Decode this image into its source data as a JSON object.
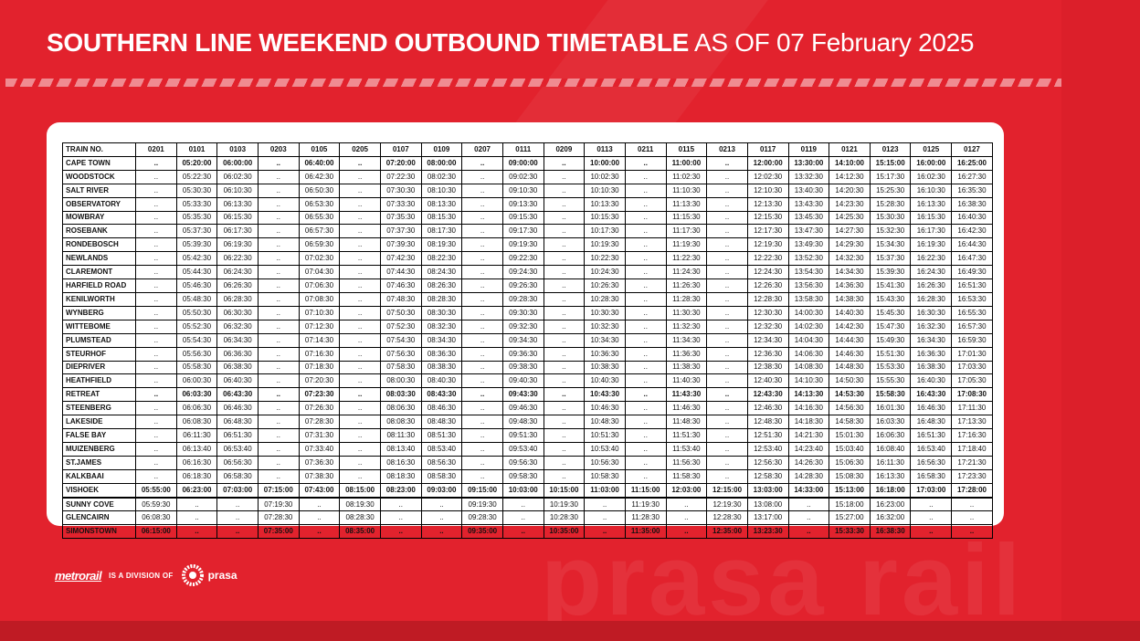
{
  "header": {
    "title_bold": "SOUTHERN LINE WEEKEND OUTBOUND TIMETABLE",
    "title_light": "AS OF 07 February 2025"
  },
  "watermark_text": "prasa rail",
  "timetable": {
    "corner_label": "TRAIN NO.",
    "trains": [
      "0201",
      "0101",
      "0103",
      "0203",
      "0105",
      "0205",
      "0107",
      "0109",
      "0207",
      "0111",
      "0209",
      "0113",
      "0211",
      "0115",
      "0213",
      "0117",
      "0119",
      "0121",
      "0123",
      "0125",
      "0127"
    ],
    "rows": [
      {
        "station": "CAPE TOWN",
        "bold": true,
        "sep": false,
        "times": [
          "..",
          "05:20:00",
          "06:00:00",
          "..",
          "06:40:00",
          "..",
          "07:20:00",
          "08:00:00",
          "..",
          "09:00:00",
          "..",
          "10:00:00",
          "..",
          "11:00:00",
          "..",
          "12:00:00",
          "13:30:00",
          "14:10:00",
          "15:15:00",
          "16:00:00",
          "16:25:00"
        ]
      },
      {
        "station": "WOODSTOCK",
        "bold": false,
        "sep": false,
        "times": [
          "..",
          "05:22:30",
          "06:02:30",
          "..",
          "06:42:30",
          "..",
          "07:22:30",
          "08:02:30",
          "..",
          "09:02:30",
          "..",
          "10:02:30",
          "..",
          "11:02:30",
          "..",
          "12:02:30",
          "13:32:30",
          "14:12:30",
          "15:17:30",
          "16:02:30",
          "16:27:30"
        ]
      },
      {
        "station": "SALT RIVER",
        "bold": false,
        "sep": false,
        "times": [
          "..",
          "05:30:30",
          "06:10:30",
          "..",
          "06:50:30",
          "..",
          "07:30:30",
          "08:10:30",
          "..",
          "09:10:30",
          "..",
          "10:10:30",
          "..",
          "11:10:30",
          "..",
          "12:10:30",
          "13:40:30",
          "14:20:30",
          "15:25:30",
          "16:10:30",
          "16:35:30"
        ]
      },
      {
        "station": "OBSERVATORY",
        "bold": false,
        "sep": false,
        "times": [
          "..",
          "05:33:30",
          "06:13:30",
          "..",
          "06:53:30",
          "..",
          "07:33:30",
          "08:13:30",
          "..",
          "09:13:30",
          "..",
          "10:13:30",
          "..",
          "11:13:30",
          "..",
          "12:13:30",
          "13:43:30",
          "14:23:30",
          "15:28:30",
          "16:13:30",
          "16:38:30"
        ]
      },
      {
        "station": "MOWBRAY",
        "bold": false,
        "sep": false,
        "times": [
          "..",
          "05:35:30",
          "06:15:30",
          "..",
          "06:55:30",
          "..",
          "07:35:30",
          "08:15:30",
          "..",
          "09:15:30",
          "..",
          "10:15:30",
          "..",
          "11:15:30",
          "..",
          "12:15:30",
          "13:45:30",
          "14:25:30",
          "15:30:30",
          "16:15:30",
          "16:40:30"
        ]
      },
      {
        "station": "ROSEBANK",
        "bold": false,
        "sep": false,
        "times": [
          "..",
          "05:37:30",
          "06:17:30",
          "..",
          "06:57:30",
          "..",
          "07:37:30",
          "08:17:30",
          "..",
          "09:17:30",
          "..",
          "10:17:30",
          "..",
          "11:17:30",
          "..",
          "12:17:30",
          "13:47:30",
          "14:27:30",
          "15:32:30",
          "16:17:30",
          "16:42:30"
        ]
      },
      {
        "station": "RONDEBOSCH",
        "bold": false,
        "sep": false,
        "times": [
          "..",
          "05:39:30",
          "06:19:30",
          "..",
          "06:59:30",
          "..",
          "07:39:30",
          "08:19:30",
          "..",
          "09:19:30",
          "..",
          "10:19:30",
          "..",
          "11:19:30",
          "..",
          "12:19:30",
          "13:49:30",
          "14:29:30",
          "15:34:30",
          "16:19:30",
          "16:44:30"
        ]
      },
      {
        "station": "NEWLANDS",
        "bold": false,
        "sep": false,
        "times": [
          "..",
          "05:42:30",
          "06:22:30",
          "..",
          "07:02:30",
          "..",
          "07:42:30",
          "08:22:30",
          "..",
          "09:22:30",
          "..",
          "10:22:30",
          "..",
          "11:22:30",
          "..",
          "12:22:30",
          "13:52:30",
          "14:32:30",
          "15:37:30",
          "16:22:30",
          "16:47:30"
        ]
      },
      {
        "station": "CLAREMONT",
        "bold": false,
        "sep": false,
        "times": [
          "..",
          "05:44:30",
          "06:24:30",
          "..",
          "07:04:30",
          "..",
          "07:44:30",
          "08:24:30",
          "..",
          "09:24:30",
          "..",
          "10:24:30",
          "..",
          "11:24:30",
          "..",
          "12:24:30",
          "13:54:30",
          "14:34:30",
          "15:39:30",
          "16:24:30",
          "16:49:30"
        ]
      },
      {
        "station": "HARFIELD ROAD",
        "bold": false,
        "sep": false,
        "times": [
          "..",
          "05:46:30",
          "06:26:30",
          "..",
          "07:06:30",
          "..",
          "07:46:30",
          "08:26:30",
          "..",
          "09:26:30",
          "..",
          "10:26:30",
          "..",
          "11:26:30",
          "..",
          "12:26:30",
          "13:56:30",
          "14:36:30",
          "15:41:30",
          "16:26:30",
          "16:51:30"
        ]
      },
      {
        "station": "KENILWORTH",
        "bold": false,
        "sep": false,
        "times": [
          "..",
          "05:48:30",
          "06:28:30",
          "..",
          "07:08:30",
          "..",
          "07:48:30",
          "08:28:30",
          "..",
          "09:28:30",
          "..",
          "10:28:30",
          "..",
          "11:28:30",
          "..",
          "12:28:30",
          "13:58:30",
          "14:38:30",
          "15:43:30",
          "16:28:30",
          "16:53:30"
        ]
      },
      {
        "station": "WYNBERG",
        "bold": false,
        "sep": false,
        "times": [
          "..",
          "05:50:30",
          "06:30:30",
          "..",
          "07:10:30",
          "..",
          "07:50:30",
          "08:30:30",
          "..",
          "09:30:30",
          "..",
          "10:30:30",
          "..",
          "11:30:30",
          "..",
          "12:30:30",
          "14:00:30",
          "14:40:30",
          "15:45:30",
          "16:30:30",
          "16:55:30"
        ]
      },
      {
        "station": "WITTEBOME",
        "bold": false,
        "sep": false,
        "times": [
          "..",
          "05:52:30",
          "06:32:30",
          "..",
          "07:12:30",
          "..",
          "07:52:30",
          "08:32:30",
          "..",
          "09:32:30",
          "..",
          "10:32:30",
          "..",
          "11:32:30",
          "..",
          "12:32:30",
          "14:02:30",
          "14:42:30",
          "15:47:30",
          "16:32:30",
          "16:57:30"
        ]
      },
      {
        "station": "PLUMSTEAD",
        "bold": false,
        "sep": false,
        "times": [
          "..",
          "05:54:30",
          "06:34:30",
          "..",
          "07:14:30",
          "..",
          "07:54:30",
          "08:34:30",
          "..",
          "09:34:30",
          "..",
          "10:34:30",
          "..",
          "11:34:30",
          "..",
          "12:34:30",
          "14:04:30",
          "14:44:30",
          "15:49:30",
          "16:34:30",
          "16:59:30"
        ]
      },
      {
        "station": "STEURHOF",
        "bold": false,
        "sep": false,
        "times": [
          "..",
          "05:56:30",
          "06:36:30",
          "..",
          "07:16:30",
          "..",
          "07:56:30",
          "08:36:30",
          "..",
          "09:36:30",
          "..",
          "10:36:30",
          "..",
          "11:36:30",
          "..",
          "12:36:30",
          "14:06:30",
          "14:46:30",
          "15:51:30",
          "16:36:30",
          "17:01:30"
        ]
      },
      {
        "station": "DIEPRIVER",
        "bold": false,
        "sep": false,
        "times": [
          "..",
          "05:58:30",
          "06:38:30",
          "..",
          "07:18:30",
          "..",
          "07:58:30",
          "08:38:30",
          "..",
          "09:38:30",
          "..",
          "10:38:30",
          "..",
          "11:38:30",
          "..",
          "12:38:30",
          "14:08:30",
          "14:48:30",
          "15:53:30",
          "16:38:30",
          "17:03:30"
        ]
      },
      {
        "station": "HEATHFIELD",
        "bold": false,
        "sep": false,
        "times": [
          "..",
          "06:00:30",
          "06:40:30",
          "..",
          "07:20:30",
          "..",
          "08:00:30",
          "08:40:30",
          "..",
          "09:40:30",
          "..",
          "10:40:30",
          "..",
          "11:40:30",
          "..",
          "12:40:30",
          "14:10:30",
          "14:50:30",
          "15:55:30",
          "16:40:30",
          "17:05:30"
        ]
      },
      {
        "station": "RETREAT",
        "bold": true,
        "sep": false,
        "times": [
          "..",
          "06:03:30",
          "06:43:30",
          "..",
          "07:23:30",
          "..",
          "08:03:30",
          "08:43:30",
          "..",
          "09:43:30",
          "..",
          "10:43:30",
          "..",
          "11:43:30",
          "..",
          "12:43:30",
          "14:13:30",
          "14:53:30",
          "15:58:30",
          "16:43:30",
          "17:08:30"
        ]
      },
      {
        "station": "STEENBERG",
        "bold": false,
        "sep": false,
        "times": [
          "..",
          "06:06:30",
          "06:46:30",
          "..",
          "07:26:30",
          "..",
          "08:06:30",
          "08:46:30",
          "..",
          "09:46:30",
          "..",
          "10:46:30",
          "..",
          "11:46:30",
          "..",
          "12:46:30",
          "14:16:30",
          "14:56:30",
          "16:01:30",
          "16:46:30",
          "17:11:30"
        ]
      },
      {
        "station": "LAKESIDE",
        "bold": false,
        "sep": false,
        "times": [
          "..",
          "06:08:30",
          "06:48:30",
          "..",
          "07:28:30",
          "..",
          "08:08:30",
          "08:48:30",
          "..",
          "09:48:30",
          "..",
          "10:48:30",
          "..",
          "11:48:30",
          "..",
          "12:48:30",
          "14:18:30",
          "14:58:30",
          "16:03:30",
          "16:48:30",
          "17:13:30"
        ]
      },
      {
        "station": "FALSE BAY",
        "bold": false,
        "sep": false,
        "times": [
          "..",
          "06:11:30",
          "06:51:30",
          "..",
          "07:31:30",
          "..",
          "08:11:30",
          "08:51:30",
          "..",
          "09:51:30",
          "..",
          "10:51:30",
          "..",
          "11:51:30",
          "..",
          "12:51:30",
          "14:21:30",
          "15:01:30",
          "16:06:30",
          "16:51:30",
          "17:16:30"
        ]
      },
      {
        "station": "MUIZENBERG",
        "bold": false,
        "sep": false,
        "times": [
          "..",
          "06:13:40",
          "06:53:40",
          "..",
          "07:33:40",
          "..",
          "08:13:40",
          "08:53:40",
          "..",
          "09:53:40",
          "..",
          "10:53:40",
          "..",
          "11:53:40",
          "..",
          "12:53:40",
          "14:23:40",
          "15:03:40",
          "16:08:40",
          "16:53:40",
          "17:18:40"
        ]
      },
      {
        "station": "ST.JAMES",
        "bold": false,
        "sep": false,
        "times": [
          "..",
          "06:16:30",
          "06:56:30",
          "..",
          "07:36:30",
          "..",
          "08:16:30",
          "08:56:30",
          "..",
          "09:56:30",
          "..",
          "10:56:30",
          "..",
          "11:56:30",
          "..",
          "12:56:30",
          "14:26:30",
          "15:06:30",
          "16:11:30",
          "16:56:30",
          "17:21:30"
        ]
      },
      {
        "station": "KALKBAAI",
        "bold": false,
        "sep": false,
        "times": [
          "..",
          "06:18:30",
          "06:58:30",
          "..",
          "07:38:30",
          "..",
          "08:18:30",
          "08:58:30",
          "..",
          "09:58:30",
          "..",
          "10:58:30",
          "..",
          "11:58:30",
          "..",
          "12:58:30",
          "14:28:30",
          "15:08:30",
          "16:13:30",
          "16:58:30",
          "17:23:30"
        ]
      },
      {
        "station": "VISHOEK",
        "bold": true,
        "sep": false,
        "times": [
          "05:55:00",
          "06:23:00",
          "07:03:00",
          "07:15:00",
          "07:43:00",
          "08:15:00",
          "08:23:00",
          "09:03:00",
          "09:15:00",
          "10:03:00",
          "10:15:00",
          "11:03:00",
          "11:15:00",
          "12:03:00",
          "12:15:00",
          "13:03:00",
          "14:33:00",
          "15:13:00",
          "16:18:00",
          "17:03:00",
          "17:28:00"
        ]
      },
      {
        "station": "SUNNY COVE",
        "bold": false,
        "sep": true,
        "times": [
          "05:59:30",
          "..",
          "..",
          "07:19:30",
          "..",
          "08:19:30",
          "..",
          "..",
          "09:19:30",
          "..",
          "10:19:30",
          "..",
          "11:19:30",
          "..",
          "12:19:30",
          "13:08:00",
          "..",
          "15:18:00",
          "16:23:00",
          "..",
          ".."
        ]
      },
      {
        "station": "GLENCAIRN",
        "bold": false,
        "sep": false,
        "times": [
          "06:08:30",
          "..",
          "..",
          "07:28:30",
          "..",
          "08:28:30",
          "..",
          "..",
          "09:28:30",
          "..",
          "10:28:30",
          "..",
          "11:28:30",
          "..",
          "12:28:30",
          "13:17:00",
          "..",
          "15:27:00",
          "16:32:00",
          "..",
          ".."
        ]
      },
      {
        "station": "SIMONSTOWN",
        "bold": true,
        "sep": false,
        "times": [
          "06:15:00",
          "..",
          "..",
          "07:35:00",
          "..",
          "08:35:00",
          "..",
          "..",
          "09:35:00",
          "..",
          "10:35:00",
          "..",
          "11:35:00",
          "..",
          "12:35:00",
          "13:23:30",
          "..",
          "15:33:30",
          "16:38:30",
          "..",
          ".."
        ]
      }
    ]
  },
  "footer": {
    "metrorail": "metrorail",
    "division": "IS A DIVISION OF",
    "prasa": "prasa"
  },
  "colors": {
    "brand_red": "#e2222d",
    "card": "#ffffff"
  }
}
